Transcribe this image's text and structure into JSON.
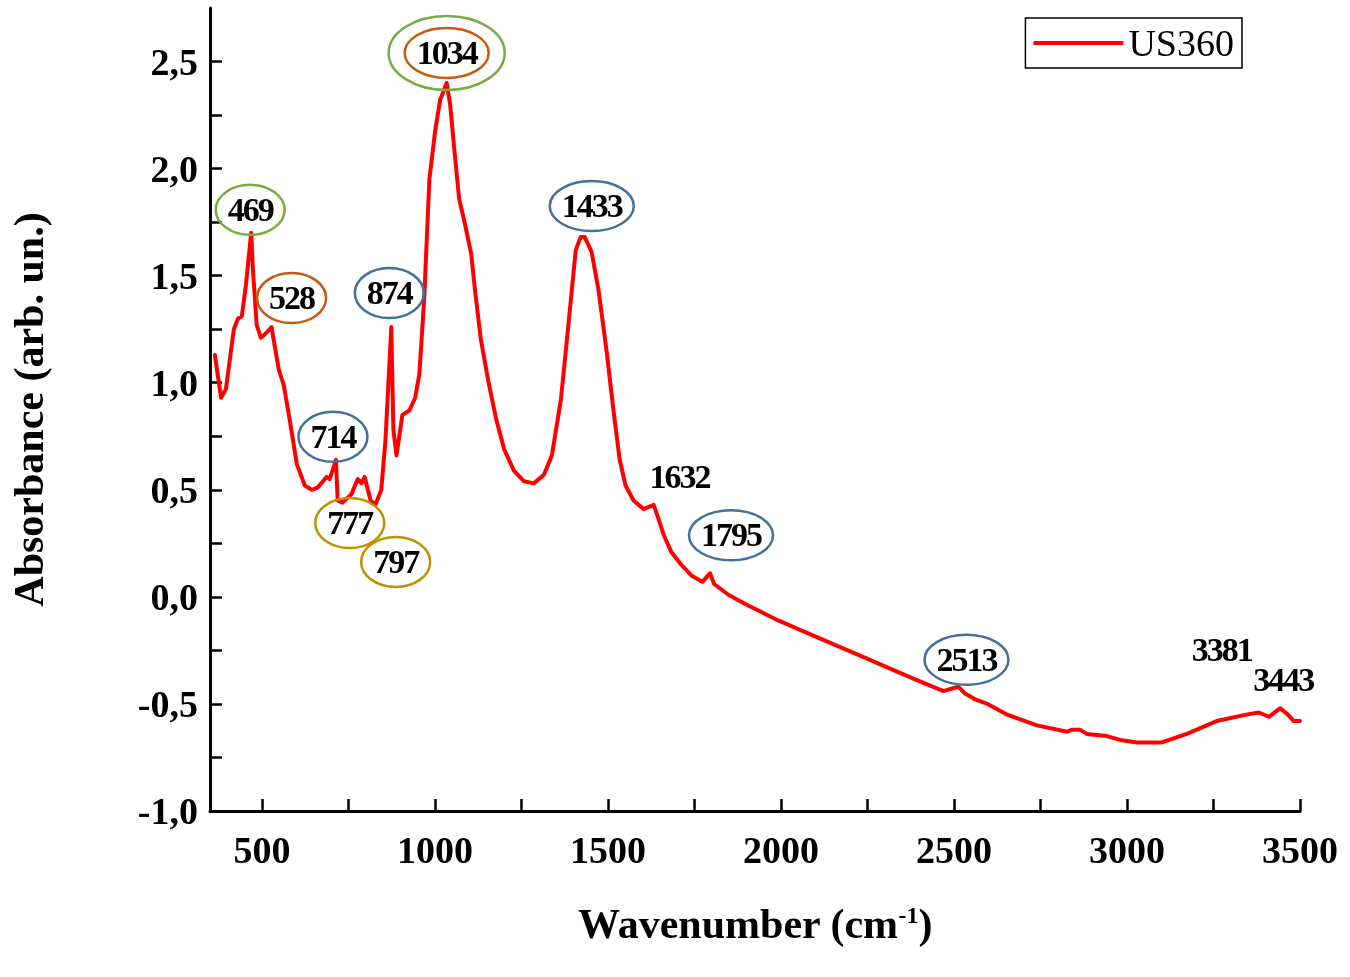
{
  "chart_data": {
    "type": "line",
    "xlabel": "Wavenumber (cm$^{-1}$)",
    "ylabel": "Absorbance (arb. un.)",
    "xlim": [
      350,
      3500
    ],
    "ylim": [
      -1.0,
      2.75
    ],
    "xticks": [
      500,
      {
        "value": 750,
        "label": null
      },
      1000,
      {
        "value": 1250,
        "label": null
      },
      1500,
      {
        "value": 1750,
        "label": null
      },
      2000,
      {
        "value": 2250,
        "label": null
      },
      2500,
      {
        "value": 2750,
        "label": null
      },
      3000,
      {
        "value": 3250,
        "label": null
      },
      3500
    ],
    "yticks": [
      {
        "value": -1.0,
        "label": "-1,0"
      },
      {
        "value": -0.75,
        "label": null
      },
      {
        "value": -0.5,
        "label": "-0,5"
      },
      {
        "value": -0.25,
        "label": null
      },
      {
        "value": 0.0,
        "label": "0,0"
      },
      {
        "value": 0.25,
        "label": null
      },
      {
        "value": 0.5,
        "label": "0,5"
      },
      {
        "value": 0.75,
        "label": null
      },
      {
        "value": 1.0,
        "label": "1,0"
      },
      {
        "value": 1.25,
        "label": null
      },
      {
        "value": 1.5,
        "label": "1,5"
      },
      {
        "value": 1.75,
        "label": null
      },
      {
        "value": 2.0,
        "label": "2,0"
      },
      {
        "value": 2.25,
        "label": null
      },
      {
        "value": 2.5,
        "label": "2,5"
      }
    ],
    "grid": false,
    "legend": "top right",
    "marker": "none",
    "line_style": "solid",
    "x": [
      364,
      382,
      396,
      419,
      431,
      442,
      454,
      469,
      474,
      485,
      497,
      511,
      528,
      534,
      549,
      563,
      580,
      601,
      624,
      644,
      661,
      687,
      696,
      714,
      719,
      733,
      759,
      777,
      788,
      797,
      814,
      828,
      845,
      857,
      874,
      880,
      889,
      906,
      926,
      943,
      955,
      969,
      984,
      1001,
      1015,
      1034,
      1044,
      1056,
      1070,
      1087,
      1105,
      1116,
      1133,
      1154,
      1177,
      1200,
      1228,
      1257,
      1286,
      1315,
      1338,
      1364,
      1387,
      1407,
      1421,
      1433,
      1453,
      1473,
      1496,
      1516,
      1534,
      1551,
      1574,
      1603,
      1632,
      1645,
      1661,
      1683,
      1712,
      1741,
      1773,
      1795,
      1807,
      1848,
      1905,
      1992,
      2107,
      2222,
      2337,
      2424,
      2470,
      2490,
      2513,
      2531,
      2563,
      2597,
      2654,
      2740,
      2827,
      2841,
      2864,
      2884,
      2942,
      2985,
      3029,
      3101,
      3173,
      3259,
      3345,
      3381,
      3410,
      3443,
      3465,
      3482,
      3500
    ],
    "series": [
      {
        "name": "US360",
        "color": "#ff0000",
        "values": [
          1.13,
          0.93,
          0.97,
          1.25,
          1.3,
          1.31,
          1.46,
          1.7,
          1.53,
          1.27,
          1.21,
          1.23,
          1.26,
          1.2,
          1.06,
          0.99,
          0.83,
          0.62,
          0.52,
          0.5,
          0.51,
          0.56,
          0.55,
          0.64,
          0.45,
          0.44,
          0.48,
          0.55,
          0.53,
          0.56,
          0.45,
          0.43,
          0.5,
          0.73,
          1.26,
          0.78,
          0.66,
          0.85,
          0.87,
          0.93,
          1.04,
          1.39,
          1.95,
          2.18,
          2.32,
          2.4,
          2.3,
          2.09,
          1.86,
          1.74,
          1.6,
          1.43,
          1.2,
          1.01,
          0.83,
          0.69,
          0.59,
          0.54,
          0.53,
          0.57,
          0.66,
          0.92,
          1.29,
          1.62,
          1.68,
          1.68,
          1.61,
          1.43,
          1.15,
          0.87,
          0.64,
          0.52,
          0.45,
          0.41,
          0.43,
          0.37,
          0.29,
          0.21,
          0.15,
          0.1,
          0.07,
          0.11,
          0.06,
          0.01,
          -0.04,
          -0.11,
          -0.19,
          -0.27,
          -0.35,
          -0.41,
          -0.44,
          -0.43,
          -0.42,
          -0.45,
          -0.48,
          -0.5,
          -0.55,
          -0.6,
          -0.63,
          -0.62,
          -0.62,
          -0.64,
          -0.65,
          -0.67,
          -0.68,
          -0.68,
          -0.64,
          -0.58,
          -0.55,
          -0.54,
          -0.56,
          -0.52,
          -0.55,
          -0.58,
          -0.58
        ]
      }
    ],
    "annotations": [
      {
        "text": "469",
        "x": 469,
        "y": 1.7
      },
      {
        "text": "528",
        "x": 528,
        "y": 1.26
      },
      {
        "text": "714",
        "x": 714,
        "y": 0.64
      },
      {
        "text": "777",
        "x": 777,
        "y": 0.55
      },
      {
        "text": "797",
        "x": 797,
        "y": 0.56
      },
      {
        "text": "874",
        "x": 874,
        "y": 1.26
      },
      {
        "text": "1034",
        "x": 1034,
        "y": 2.4
      },
      {
        "text": "1433",
        "x": 1433,
        "y": 1.68
      },
      {
        "text": "1632",
        "x": 1632,
        "y": 0.43
      },
      {
        "text": "1795",
        "x": 1795,
        "y": 0.11
      },
      {
        "text": "2513",
        "x": 2513,
        "y": -0.42
      },
      {
        "text": "3381",
        "x": 3381,
        "y": -0.54
      },
      {
        "text": "3443",
        "x": 3443,
        "y": -0.52
      }
    ]
  }
}
